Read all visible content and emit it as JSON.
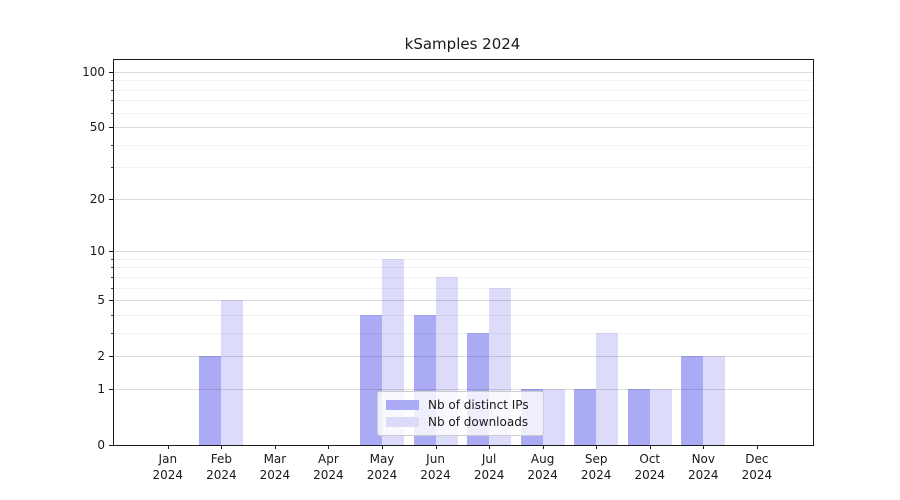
{
  "chart_data": {
    "type": "bar",
    "title": "kSamples 2024",
    "categories": [
      "Jan",
      "Feb",
      "Mar",
      "Apr",
      "May",
      "Jun",
      "Jul",
      "Aug",
      "Sep",
      "Oct",
      "Nov",
      "Dec"
    ],
    "category_year": "2024",
    "series": [
      {
        "name": "Nb of distinct IPs",
        "color": "#aaaaf5",
        "values": [
          0,
          2,
          0,
          0,
          4,
          4,
          3,
          1,
          1,
          1,
          2,
          0
        ]
      },
      {
        "name": "Nb of downloads",
        "color": "#dcdcfa",
        "values": [
          0,
          5,
          0,
          0,
          9,
          7,
          6,
          1,
          3,
          1,
          2,
          0
        ]
      }
    ],
    "xlabel": "",
    "ylabel": "",
    "y_scale": "log1p",
    "ylim": [
      0,
      100
    ],
    "y_major_ticks": [
      0,
      1,
      2,
      5,
      10,
      20,
      50,
      100
    ],
    "y_minor_ticks": [
      3,
      4,
      6,
      7,
      8,
      9,
      30,
      40,
      60,
      70,
      80,
      90
    ],
    "grid": true,
    "legend_position": "lower center",
    "style": {
      "spine_color": "#1a1a1a",
      "major_grid_color": "#dedede",
      "minor_grid_color": "#f2f2f2",
      "legend_border_color": "#cccccc",
      "text_color": "#1a1a1a",
      "background_color": "#ffffff"
    }
  }
}
